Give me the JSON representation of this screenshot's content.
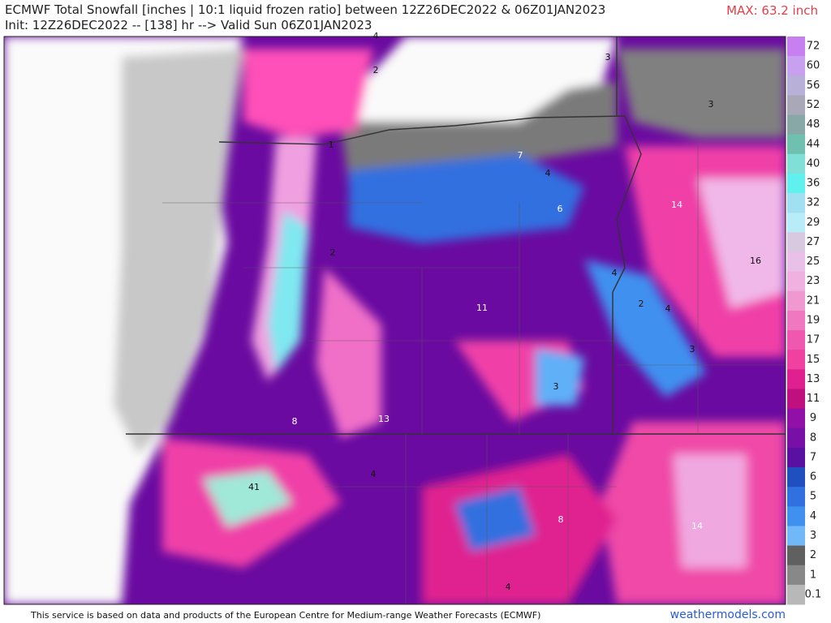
{
  "header": {
    "title": "ECMWF Total Snowfall [inches | 10:1 liquid frozen ratio] between 12Z26DEC2022 & 06Z01JAN2023",
    "init": "Init: 12Z26DEC2022 -- [138] hr --> Valid Sun 06Z01JAN2023",
    "max": "MAX: 63.2 inch"
  },
  "map": {
    "labels": [
      "4",
      "2",
      "3",
      "3",
      "1",
      "7",
      "4",
      "6",
      "14",
      "2",
      "16",
      "4",
      "2",
      "4",
      "11",
      "3",
      "3",
      "8",
      "13",
      "4",
      "41",
      "8",
      "14",
      "4"
    ]
  },
  "legend": {
    "levels": [
      "72",
      "60",
      "56",
      "52",
      "48",
      "44",
      "40",
      "36",
      "32",
      "29",
      "27",
      "25",
      "23",
      "21",
      "19",
      "17",
      "15",
      "13",
      "11",
      "9",
      "8",
      "7",
      "6",
      "5",
      "4",
      "3",
      "2",
      "1",
      "0.1"
    ],
    "colors": [
      "#c880f0",
      "#c8a0f0",
      "#b8b0d8",
      "#a8a8b8",
      "#88a8a8",
      "#70c0b0",
      "#80e0d8",
      "#60f0f0",
      "#a0e0f0",
      "#b8ecf8",
      "#d8c8e0",
      "#e8c0e8",
      "#f0b0e0",
      "#f098d0",
      "#f078c0",
      "#f058b0",
      "#f040a0",
      "#e02090",
      "#c01080",
      "#9010a8",
      "#7810a8",
      "#5a10a0",
      "#2050c0",
      "#3070e0",
      "#4090f0",
      "#70b8f8",
      "#606060",
      "#888888",
      "#b8b8b8"
    ]
  },
  "footer": {
    "disclaimer": "This service is based on data and products of the European Centre for Medium-range Weather Forecasts (ECMWF)",
    "site": "weathermodels.com"
  }
}
